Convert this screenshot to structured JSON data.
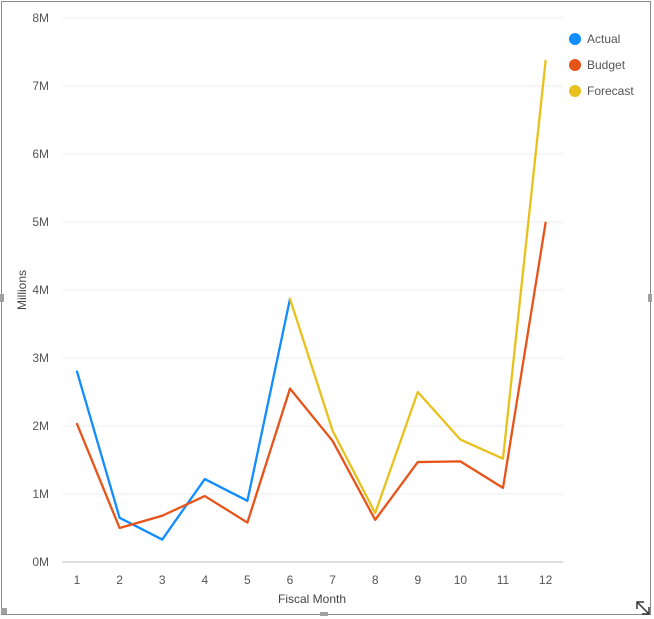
{
  "chart_data": {
    "type": "line",
    "xlabel": "Fiscal Month",
    "ylabel": "Millions",
    "x": [
      1,
      2,
      3,
      4,
      5,
      6,
      7,
      8,
      9,
      10,
      11,
      12
    ],
    "x_tick_labels": [
      "1",
      "2",
      "3",
      "4",
      "5",
      "6",
      "7",
      "8",
      "9",
      "10",
      "11",
      "12"
    ],
    "ylim": [
      0,
      8
    ],
    "y_tick_labels": [
      "0M",
      "1M",
      "2M",
      "3M",
      "4M",
      "5M",
      "6M",
      "7M",
      "8M"
    ],
    "grid": true,
    "legend_position": "top-right",
    "series": [
      {
        "name": "Actual",
        "color": "#118DFF",
        "x": [
          1,
          2,
          3,
          4,
          5,
          6
        ],
        "values": [
          2.8,
          0.65,
          0.33,
          1.22,
          0.9,
          3.87
        ]
      },
      {
        "name": "Budget",
        "color": "#E8531A",
        "x": [
          1,
          2,
          3,
          4,
          5,
          6,
          7,
          8,
          9,
          10,
          11,
          12
        ],
        "values": [
          2.03,
          0.5,
          0.68,
          0.97,
          0.58,
          2.55,
          1.78,
          0.62,
          1.47,
          1.48,
          1.09,
          4.99
        ]
      },
      {
        "name": "Forecast",
        "color": "#E8C11C",
        "x": [
          6,
          7,
          8,
          9,
          10,
          11,
          12
        ],
        "values": [
          3.87,
          1.93,
          0.72,
          2.5,
          1.8,
          1.52,
          7.37
        ]
      }
    ]
  }
}
